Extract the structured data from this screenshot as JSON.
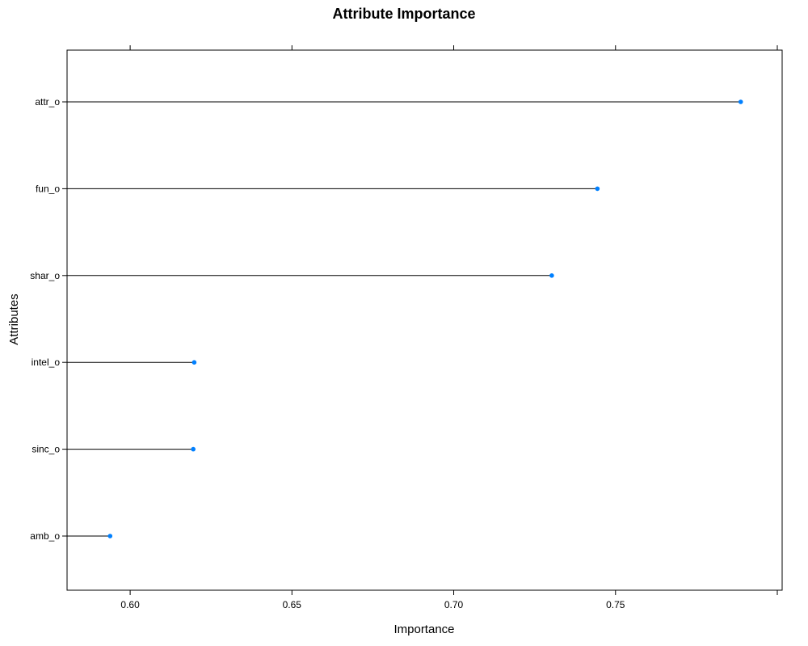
{
  "chart_data": {
    "type": "dotplot",
    "title": "Attribute Importance",
    "xlabel": "Importance",
    "ylabel": "Attributes",
    "xlim": [
      0.5805,
      0.8015
    ],
    "x_ticks": [
      0.6,
      0.65,
      0.7,
      0.75
    ],
    "x_tick_labels": [
      "0.60",
      "0.65",
      "0.70",
      "0.75"
    ],
    "categories": [
      "attr_o",
      "fun_o",
      "shar_o",
      "intel_o",
      "sinc_o",
      "amb_o"
    ],
    "values": [
      0.7887,
      0.7444,
      0.7303,
      0.6198,
      0.6195,
      0.5938
    ],
    "point_color": "#0080ff",
    "line_color": "#000000",
    "grid": false
  }
}
